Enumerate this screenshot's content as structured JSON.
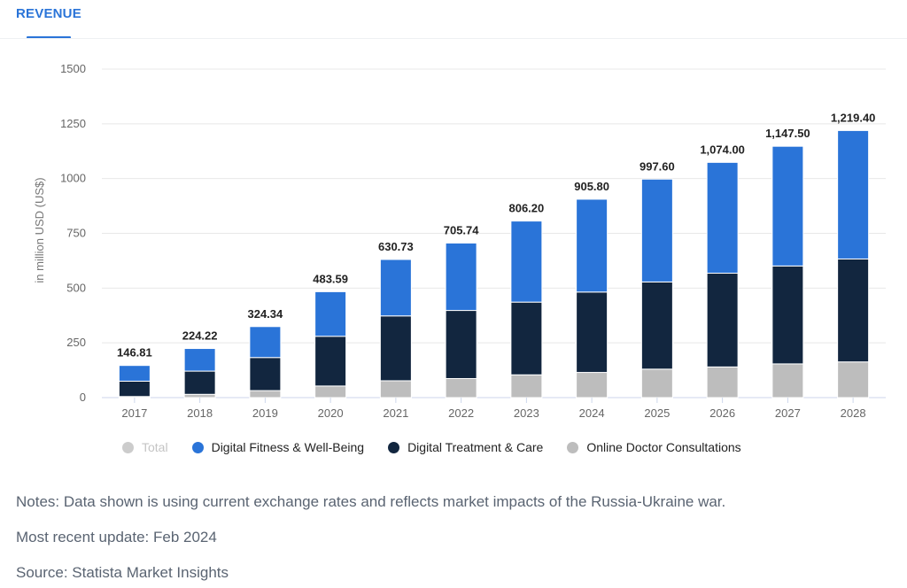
{
  "tab": {
    "label": "REVENUE"
  },
  "colors": {
    "accent": "#2a74d8",
    "fitness": "#2a74d8",
    "treatment": "#12263f",
    "consultations": "#bdbdbd",
    "total_disabled": "#cccccc"
  },
  "legend": [
    {
      "label": "Total",
      "color": "#cccccc",
      "disabled": true
    },
    {
      "label": "Digital Fitness & Well-Being",
      "color": "#2a74d8",
      "disabled": false
    },
    {
      "label": "Digital Treatment & Care",
      "color": "#12263f",
      "disabled": false
    },
    {
      "label": "Online Doctor Consultations",
      "color": "#bdbdbd",
      "disabled": false
    }
  ],
  "notes": {
    "notes": "Notes: Data shown is using current exchange rates and reflects market impacts of the Russia-Ukraine war.",
    "update": "Most recent update: Feb 2024",
    "source": "Source: Statista Market Insights"
  },
  "chart_data": {
    "type": "bar",
    "stacked": true,
    "title": "",
    "xlabel": "",
    "ylabel": "in million USD (US$)",
    "ylim": [
      0,
      1500
    ],
    "yticks": [
      0,
      250,
      500,
      750,
      1000,
      1250,
      1500
    ],
    "grid": true,
    "legend_position": "bottom",
    "categories": [
      "2017",
      "2018",
      "2019",
      "2020",
      "2021",
      "2022",
      "2023",
      "2024",
      "2025",
      "2026",
      "2027",
      "2028"
    ],
    "totals_labels": [
      "146.81",
      "224.22",
      "324.34",
      "483.59",
      "630.73",
      "705.74",
      "806.20",
      "905.80",
      "997.60",
      "1,074.00",
      "1,147.50",
      "1,219.40"
    ],
    "totals": [
      146.81,
      224.22,
      324.34,
      483.59,
      630.73,
      705.74,
      806.2,
      905.8,
      997.6,
      1074.0,
      1147.5,
      1219.4
    ],
    "series": [
      {
        "name": "Online Doctor Consultations",
        "values": [
          5,
          15,
          32,
          53,
          77,
          87,
          104,
          115,
          130,
          140,
          154,
          163
        ]
      },
      {
        "name": "Digital Treatment & Care",
        "values": [
          70,
          106,
          151,
          227,
          296,
          311,
          332,
          367,
          398,
          428,
          447,
          470
        ]
      },
      {
        "name": "Digital Fitness & Well-Being",
        "values": [
          71.81,
          103.22,
          141.34,
          203.59,
          257.73,
          307.74,
          370.2,
          423.8,
          469.6,
          506.0,
          546.5,
          586.4
        ]
      }
    ]
  }
}
